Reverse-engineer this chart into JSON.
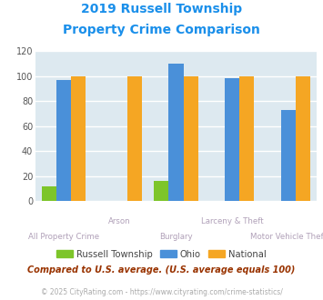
{
  "title_line1": "2019 Russell Township",
  "title_line2": "Property Crime Comparison",
  "title_color": "#1a8fea",
  "categories": [
    "All Property Crime",
    "Arson",
    "Burglary",
    "Larceny & Theft",
    "Motor Vehicle Theft"
  ],
  "russell": [
    12,
    0,
    16,
    0,
    0
  ],
  "ohio": [
    97,
    0,
    110,
    98,
    73
  ],
  "national": [
    100,
    100,
    100,
    100,
    100
  ],
  "russell_color": "#7dc52a",
  "ohio_color": "#4a90d9",
  "national_color": "#f5a623",
  "bg_color": "#dde9f0",
  "ylim": [
    0,
    120
  ],
  "yticks": [
    0,
    20,
    40,
    60,
    80,
    100,
    120
  ],
  "note_text": "Compared to U.S. average. (U.S. average equals 100)",
  "note_color": "#993300",
  "footer_text": "© 2025 CityRating.com - https://www.cityrating.com/crime-statistics/",
  "footer_color": "#aaaaaa",
  "legend_labels": [
    "Russell Township",
    "Ohio",
    "National"
  ]
}
